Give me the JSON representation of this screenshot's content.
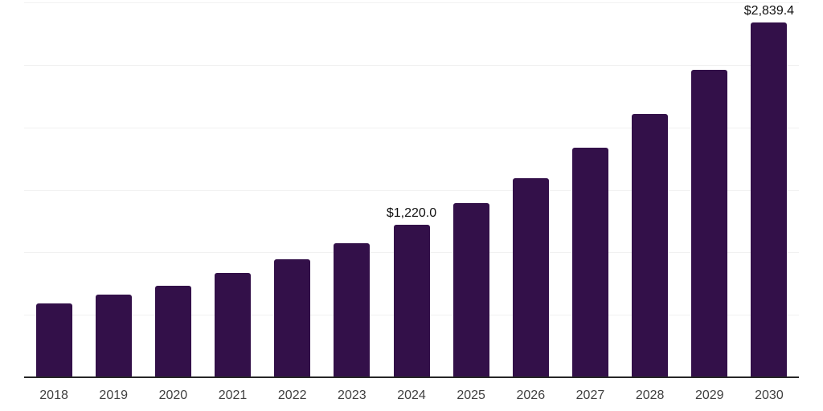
{
  "chart_data": {
    "type": "bar",
    "categories": [
      "2018",
      "2019",
      "2020",
      "2021",
      "2022",
      "2023",
      "2024",
      "2025",
      "2026",
      "2027",
      "2028",
      "2029",
      "2030"
    ],
    "values": [
      590,
      660,
      735,
      835,
      945,
      1075,
      1220.0,
      1395,
      1590,
      1835,
      2110,
      2460,
      2839.4
    ],
    "data_labels": [
      "",
      "",
      "",
      "",
      "",
      "",
      "$1,220.0",
      "",
      "",
      "",
      "",
      "",
      "$2,839.4"
    ],
    "title": "",
    "xlabel": "",
    "ylabel": "",
    "ylim": [
      0,
      3000
    ],
    "gridline_step": 500,
    "grid": true,
    "legend_position": "none"
  },
  "colors": {
    "bar": "#331049",
    "axis_line": "#262626",
    "gridline": "#f1f1f1",
    "tick_label": "#404040",
    "data_label": "#111111",
    "background": "#ffffff"
  }
}
